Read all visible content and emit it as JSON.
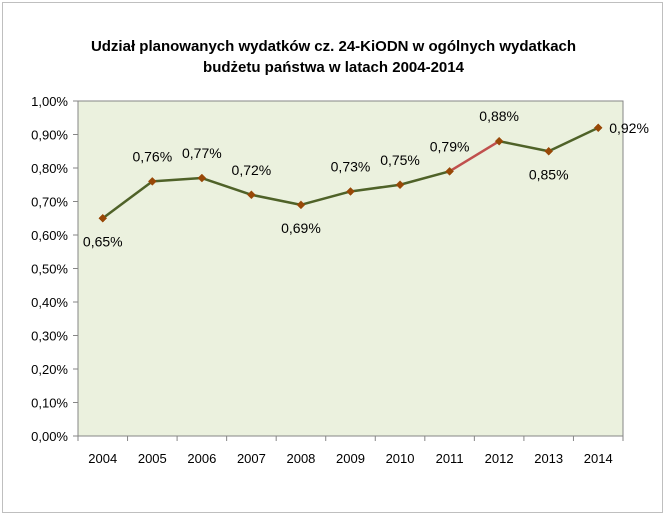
{
  "colors": {
    "plot_background": "#ebf1de",
    "line_main": "#4f6228",
    "line_highlight": "#c0504d",
    "marker": "#984807",
    "axis": "#868686"
  },
  "chart_data": {
    "type": "line",
    "title": [
      "Udział planowanych wydatków cz. 24-KiODN w ogólnych wydatkach",
      "budżetu państwa w latach 2004-2014"
    ],
    "xlabel": "",
    "ylabel": "",
    "categories": [
      "2004",
      "2005",
      "2006",
      "2007",
      "2008",
      "2009",
      "2010",
      "2011",
      "2012",
      "2013",
      "2014"
    ],
    "series": [
      {
        "values": [
          0.65,
          0.76,
          0.77,
          0.72,
          0.69,
          0.73,
          0.75,
          0.79,
          0.88,
          0.85,
          0.92
        ],
        "data_labels": [
          "0,65%",
          "0,76%",
          "0,77%",
          "0,72%",
          "0,69%",
          "0,73%",
          "0,75%",
          "0,79%",
          "0,88%",
          "0,85%",
          "0,92%"
        ]
      }
    ],
    "highlighted_segment": [
      "2011",
      "2012"
    ],
    "ylim": [
      0,
      1.0
    ],
    "y_ticks": [
      0,
      0.1,
      0.2,
      0.3,
      0.4,
      0.5,
      0.6,
      0.7,
      0.8,
      0.9,
      1.0
    ],
    "y_tick_labels": [
      "0,00%",
      "0,10%",
      "0,20%",
      "0,30%",
      "0,40%",
      "0,50%",
      "0,60%",
      "0,70%",
      "0,80%",
      "0,90%",
      "1,00%"
    ],
    "grid": false,
    "legend": "none"
  }
}
